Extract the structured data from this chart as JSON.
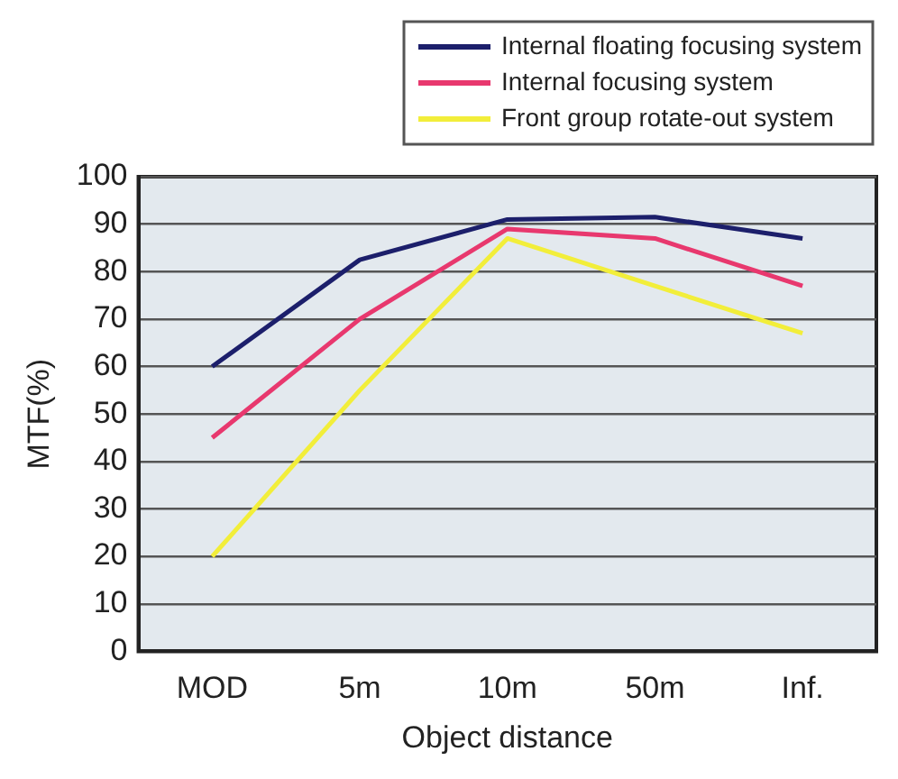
{
  "chart_data": {
    "type": "line",
    "xlabel": "Object distance",
    "ylabel": "MTF(%)",
    "categories": [
      "MOD",
      "5m",
      "10m",
      "50m",
      "Inf."
    ],
    "series": [
      {
        "name": "Internal floating focusing system",
        "color": "#1c1f6b",
        "values": [
          60,
          82.5,
          91,
          91.5,
          87
        ]
      },
      {
        "name": "Internal focusing system",
        "color": "#e8386e",
        "values": [
          45,
          70,
          89,
          87,
          77
        ]
      },
      {
        "name": "Front group rotate-out system",
        "color": "#f2ee3a",
        "values": [
          20,
          55,
          87,
          77,
          67
        ]
      }
    ],
    "ylim": [
      0,
      100
    ],
    "yticks": [
      0,
      10,
      20,
      30,
      40,
      50,
      60,
      70,
      80,
      90,
      100
    ],
    "grid": "y",
    "legend": "top right",
    "marker": "none",
    "line_style": "solid"
  }
}
